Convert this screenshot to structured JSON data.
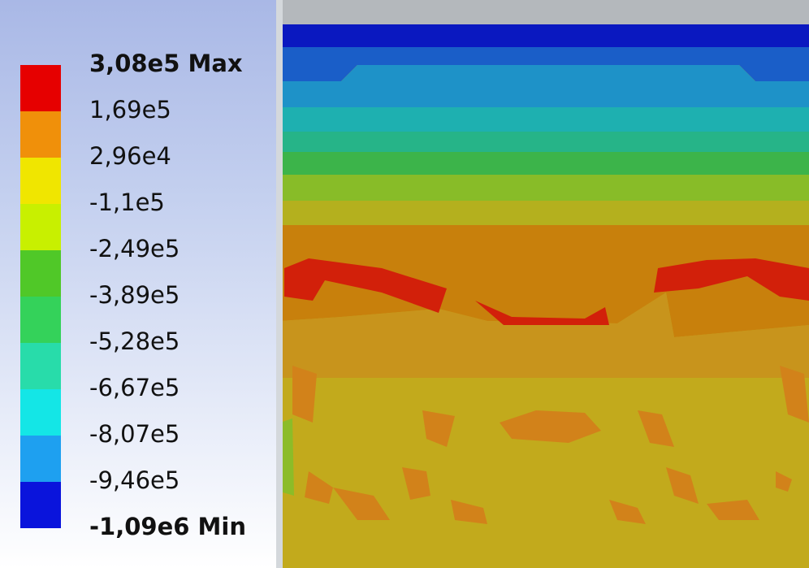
{
  "legend": {
    "labels": [
      "3,08e5 Max",
      "1,69e5",
      "2,96e4",
      "-1,1e5",
      "-2,49e5",
      "-3,89e5",
      "-5,28e5",
      "-6,67e5",
      "-8,07e5",
      "-9,46e5",
      "-1,09e6 Min"
    ],
    "colors": [
      "#e60000",
      "#f0900a",
      "#f0e600",
      "#c8f000",
      "#50c828",
      "#34d25a",
      "#28dcaa",
      "#14e6e6",
      "#1ea0f0",
      "#0a14dc"
    ]
  }
}
